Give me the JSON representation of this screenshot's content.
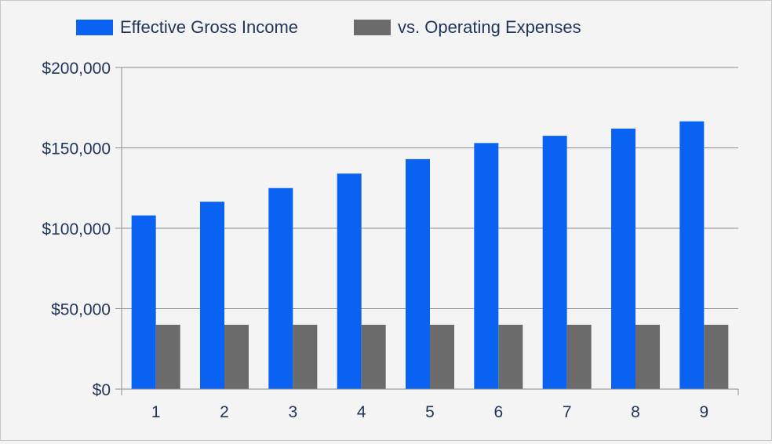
{
  "chart_data": {
    "type": "bar",
    "categories": [
      "1",
      "2",
      "3",
      "4",
      "5",
      "6",
      "7",
      "8",
      "9"
    ],
    "series": [
      {
        "name": "Effective Gross Income",
        "color": "#0a62f2",
        "values": [
          108000,
          116500,
          125000,
          134000,
          143000,
          153000,
          157500,
          162000,
          166500
        ]
      },
      {
        "name": "vs. Operating Expenses",
        "color": "#6b6b6b",
        "values": [
          40000,
          40000,
          40000,
          40000,
          40000,
          40000,
          40000,
          40000,
          40000
        ]
      }
    ],
    "y_ticks": [
      "$0",
      "$50,000",
      "$100,000",
      "$150,000",
      "$200,000"
    ],
    "ylim": [
      0,
      200000
    ],
    "grid": true,
    "legend": "top-left",
    "title": "",
    "xlabel": "",
    "ylabel": ""
  }
}
